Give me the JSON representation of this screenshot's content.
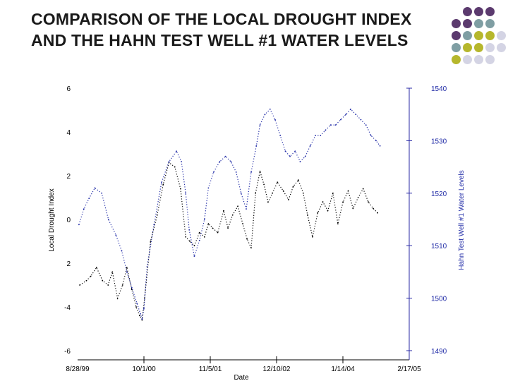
{
  "slide": {
    "title": "COMPARISON OF THE LOCAL DROUGHT INDEX AND THE HAHN TEST WELL #1 WATER LEVELS"
  },
  "decor": {
    "dot_colors": [
      "#5b3a6e",
      "#7f9ea3",
      "#b6b72c",
      "#d4d4e4"
    ],
    "dot_grid": [
      [
        null,
        0,
        0,
        0
      ],
      [
        0,
        0,
        1,
        1
      ],
      [
        0,
        1,
        2,
        2,
        3
      ],
      [
        1,
        2,
        2,
        3,
        3
      ],
      [
        2,
        3,
        3,
        3
      ]
    ]
  },
  "chart_data": {
    "type": "line",
    "xlabel": "Date",
    "ylabel_left": "Local Drought Index",
    "ylabel_right": "Hahn Test Well #1 Water Levels",
    "x_ticks": [
      "8/28/99",
      "10/1/00",
      "11/5/01",
      "12/10/02",
      "1/14/04",
      "2/17/05"
    ],
    "xlim": [
      "1999-08-28",
      "2005-02-17"
    ],
    "ylim_left": [
      -6,
      6
    ],
    "y_ticks_left": [
      "6",
      "4",
      "2",
      "0",
      "2",
      "-4",
      "-6"
    ],
    "ylim_right": [
      1490,
      1540
    ],
    "y_ticks_right": [
      "1540",
      "1530",
      "1520",
      "1510",
      "1500",
      "1490"
    ],
    "grid": false,
    "series": [
      {
        "color": "#000000",
        "axis": "left",
        "style": "dotted",
        "x": [
          "1999-09-10",
          "1999-10-20",
          "1999-11-15",
          "1999-12-20",
          "2000-01-25",
          "2000-02-28",
          "2000-03-25",
          "2000-04-25",
          "2000-05-25",
          "2000-06-20",
          "2000-07-20",
          "2000-08-15",
          "2000-09-05",
          "2000-09-20",
          "2000-10-05",
          "2000-11-10",
          "2000-12-20",
          "2001-01-25",
          "2001-03-01",
          "2001-04-05",
          "2001-05-10",
          "2001-06-10",
          "2001-07-05",
          "2001-08-01",
          "2001-09-01",
          "2001-10-01",
          "2001-10-25",
          "2001-11-20",
          "2001-12-20",
          "2002-01-25",
          "2002-02-20",
          "2002-03-20",
          "2002-04-20",
          "2002-05-20",
          "2002-06-15",
          "2002-07-10",
          "2002-08-05",
          "2002-09-01",
          "2002-09-25",
          "2002-10-20",
          "2002-11-15",
          "2002-12-15",
          "2003-01-20",
          "2003-02-20",
          "2003-03-20",
          "2003-04-20",
          "2003-05-20",
          "2003-06-15",
          "2003-07-15",
          "2003-08-15",
          "2003-09-15",
          "2003-10-15",
          "2003-11-15",
          "2003-12-15",
          "2004-01-15",
          "2004-02-15",
          "2004-03-15",
          "2004-04-15",
          "2004-05-15",
          "2004-06-15",
          "2004-07-15",
          "2004-08-10"
        ],
        "y": [
          -3.0,
          -2.8,
          -2.6,
          -2.2,
          -2.8,
          -3.0,
          -2.4,
          -3.6,
          -3.0,
          -2.2,
          -3.2,
          -4.0,
          -4.4,
          -4.6,
          -3.6,
          -1.0,
          0.2,
          1.6,
          2.6,
          2.4,
          1.4,
          -0.8,
          -1.0,
          -1.2,
          -0.6,
          -0.8,
          -0.2,
          -0.4,
          -0.6,
          0.4,
          -0.4,
          0.2,
          0.6,
          -0.2,
          -0.9,
          -1.3,
          1.2,
          2.2,
          1.6,
          0.8,
          1.2,
          1.7,
          1.3,
          0.9,
          1.5,
          1.8,
          1.2,
          0.2,
          -0.8,
          0.3,
          0.8,
          0.4,
          1.2,
          -0.2,
          0.8,
          1.3,
          0.5,
          1.0,
          1.4,
          0.8,
          0.5,
          0.3
        ]
      },
      {
        "color": "#1f2aa6",
        "axis": "right",
        "style": "dotted",
        "x": [
          "1999-09-05",
          "1999-10-05",
          "1999-11-05",
          "1999-12-10",
          "2000-01-20",
          "2000-03-01",
          "2000-04-15",
          "2000-05-20",
          "2000-06-20",
          "2000-07-20",
          "2000-08-20",
          "2000-09-10",
          "2000-09-20",
          "2000-10-01",
          "2000-10-20",
          "2000-12-01",
          "2001-01-15",
          "2001-03-01",
          "2001-04-15",
          "2001-05-15",
          "2001-06-10",
          "2001-07-01",
          "2001-08-01",
          "2001-09-01",
          "2001-10-01",
          "2001-10-25",
          "2001-11-25",
          "2002-01-01",
          "2002-02-05",
          "2002-03-10",
          "2002-04-10",
          "2002-05-10",
          "2002-06-10",
          "2002-07-10",
          "2002-08-10",
          "2002-09-01",
          "2002-10-01",
          "2002-11-01",
          "2002-12-01",
          "2003-01-01",
          "2003-02-01",
          "2003-03-01",
          "2003-04-01",
          "2003-05-01",
          "2003-06-01",
          "2003-07-01",
          "2003-08-01",
          "2003-09-01",
          "2003-10-01",
          "2003-11-01",
          "2003-12-01",
          "2004-01-01",
          "2004-02-01",
          "2004-03-01",
          "2004-04-01",
          "2004-05-01",
          "2004-06-01",
          "2004-07-01",
          "2004-08-01",
          "2004-08-25"
        ],
        "y": [
          1514,
          1517,
          1519,
          1521,
          1520,
          1515,
          1512,
          1509,
          1505,
          1502,
          1499,
          1497,
          1496,
          1498,
          1506,
          1514,
          1522,
          1526,
          1528,
          1526,
          1520,
          1513,
          1508,
          1511,
          1515,
          1521,
          1524,
          1526,
          1527,
          1526,
          1524,
          1520,
          1517,
          1524,
          1529,
          1533,
          1535,
          1536,
          1534,
          1531,
          1528,
          1527,
          1528,
          1526,
          1527,
          1529,
          1531,
          1531,
          1532,
          1533,
          1533,
          1534,
          1535,
          1536,
          1535,
          1534,
          1533,
          1531,
          1530,
          1529
        ]
      }
    ]
  }
}
